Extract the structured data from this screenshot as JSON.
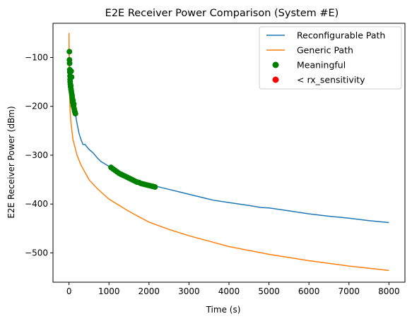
{
  "chart_data": {
    "type": "line",
    "title": "E2E Receiver Power Comparison (System #E)",
    "xlabel": "Time (s)",
    "ylabel": "E2E Receiver Power (dBm)",
    "xlim": [
      -400,
      8400
    ],
    "ylim": [
      -560,
      -30
    ],
    "xticks": [
      0,
      1000,
      2000,
      3000,
      4000,
      5000,
      6000,
      7000,
      8000
    ],
    "yticks": [
      -100,
      -200,
      -300,
      -400,
      -500
    ],
    "grid": false,
    "legend_position": "top-right",
    "series": [
      {
        "name": "Reconfigurable Path",
        "kind": "line",
        "color": "#1f77b4",
        "x": [
          5,
          10,
          20,
          30,
          40,
          50,
          60,
          70,
          80,
          90,
          100,
          120,
          140,
          160,
          180,
          200,
          250,
          300,
          350,
          400,
          500,
          600,
          700,
          800,
          900,
          1000,
          1100,
          1300,
          1500,
          1700,
          1900,
          2100,
          2300,
          2600,
          3000,
          3400,
          3600,
          4000,
          4500,
          4800,
          5000,
          5500,
          6000,
          6500,
          7000,
          7500,
          8000
        ],
        "y": [
          -90,
          -110,
          -130,
          -150,
          -162,
          -172,
          -180,
          -186,
          -190,
          -195,
          -198,
          -205,
          -210,
          -215,
          -225,
          -235,
          -255,
          -268,
          -278,
          -278,
          -288,
          -295,
          -305,
          -313,
          -318,
          -323,
          -330,
          -338,
          -345,
          -352,
          -357,
          -362,
          -366,
          -372,
          -380,
          -388,
          -392,
          -397,
          -403,
          -407,
          -408,
          -414,
          -420,
          -425,
          -429,
          -434,
          -438
        ]
      },
      {
        "name": "Generic Path",
        "kind": "line",
        "color": "#ff7f0e",
        "x": [
          1,
          3,
          8,
          15,
          30,
          50,
          100,
          200,
          300,
          500,
          700,
          1000,
          1500,
          2000,
          2500,
          3000,
          3500,
          4000,
          5000,
          6000,
          7000,
          8000
        ],
        "y": [
          -50,
          -90,
          -140,
          -175,
          -210,
          -235,
          -268,
          -300,
          -320,
          -350,
          -368,
          -390,
          -415,
          -437,
          -452,
          -465,
          -476,
          -487,
          -503,
          -516,
          -527,
          -536
        ]
      },
      {
        "name": "Meaningful",
        "kind": "scatter",
        "color": "#008000",
        "x": [
          10,
          12,
          15,
          18,
          20,
          25,
          28,
          30,
          35,
          40,
          45,
          50,
          55,
          60,
          65,
          70,
          75,
          80,
          85,
          90,
          95,
          100,
          105,
          110,
          115,
          120,
          130,
          140,
          150,
          160,
          1050,
          1100,
          1150,
          1200,
          1250,
          1300,
          1350,
          1400,
          1450,
          1500,
          1550,
          1600,
          1650,
          1700,
          1750,
          1800,
          1850,
          1900,
          1950,
          2000,
          2050,
          2100,
          2150
        ],
        "y": [
          -88,
          -105,
          -112,
          -125,
          -130,
          -138,
          -145,
          -150,
          -155,
          -160,
          -158,
          -165,
          -128,
          -170,
          -140,
          -175,
          -178,
          -182,
          -185,
          -190,
          -192,
          -188,
          -195,
          -198,
          -200,
          -195,
          -205,
          -210,
          -212,
          -215,
          -325,
          -328,
          -331,
          -334,
          -337,
          -339,
          -341,
          -343,
          -345,
          -347,
          -349,
          -351,
          -353,
          -355,
          -356,
          -358,
          -359,
          -360,
          -361,
          -362,
          -363,
          -364,
          -365
        ]
      },
      {
        "name": "< rx_sensitivity",
        "kind": "scatter",
        "color": "#ff0000",
        "x": [],
        "y": []
      }
    ]
  }
}
